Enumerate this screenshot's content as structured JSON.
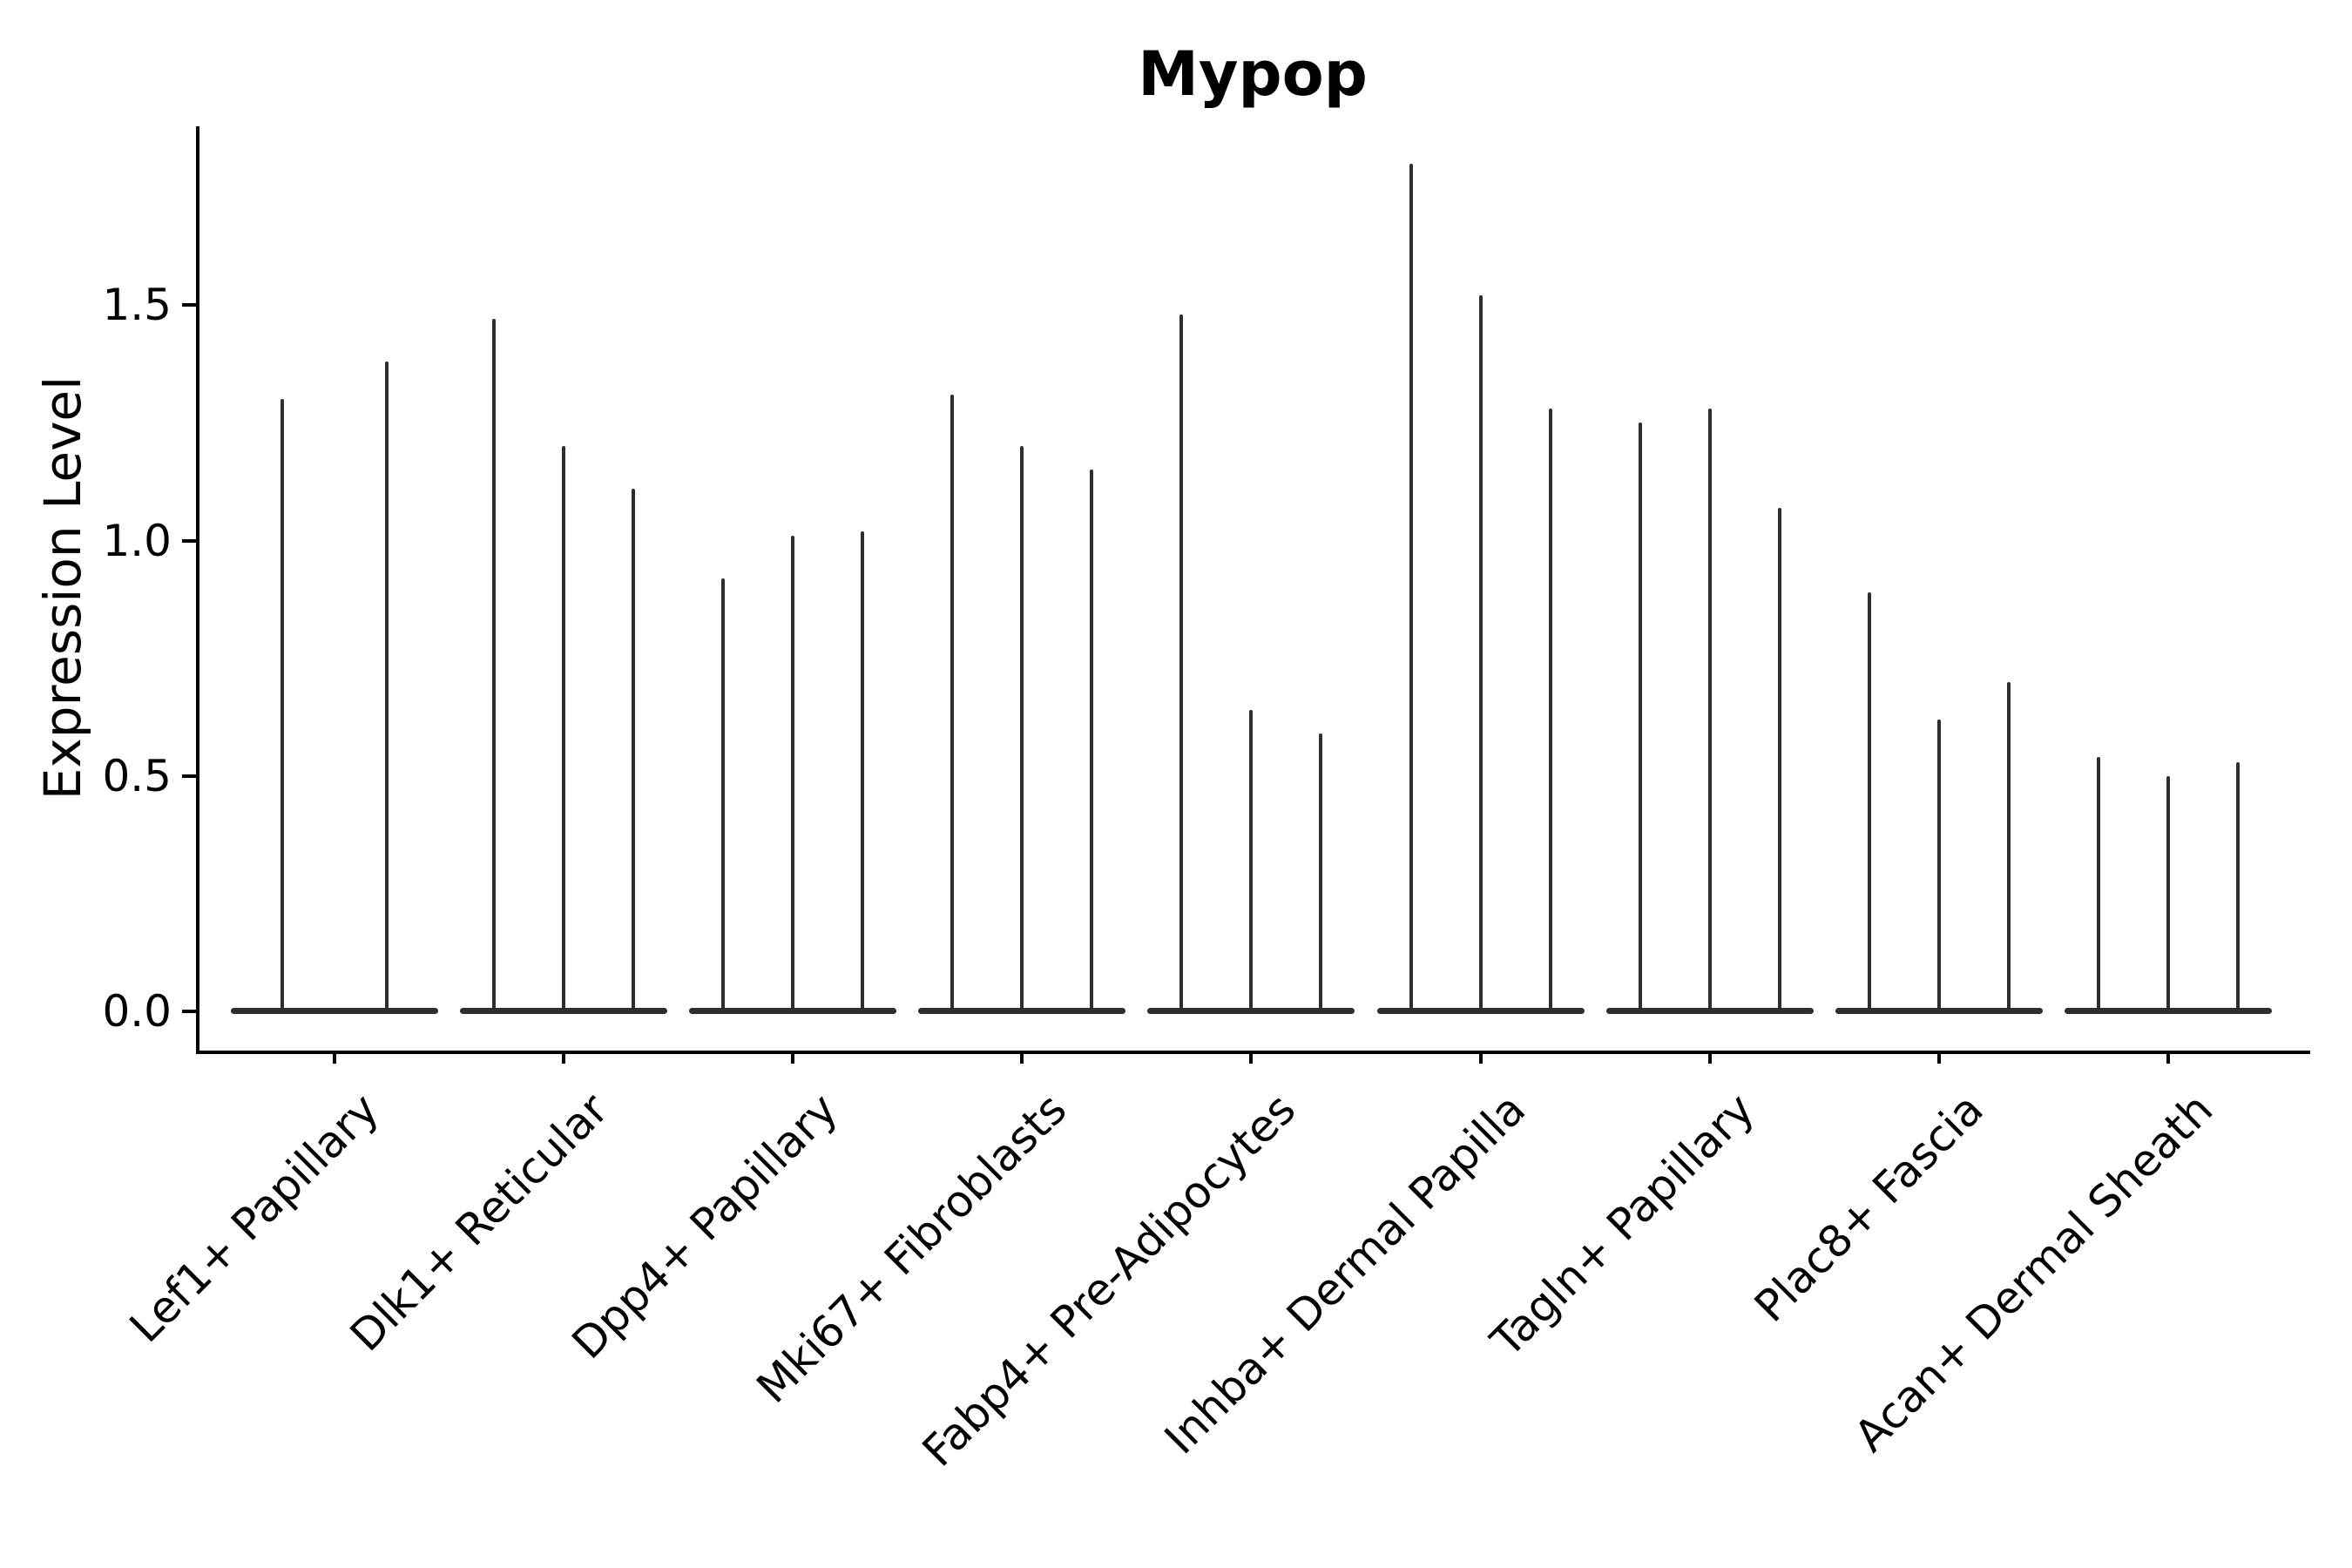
{
  "title": "Mypop",
  "y_axis": {
    "label": "Expression Level",
    "tick_labels": [
      "0.0",
      "0.5",
      "1.0",
      "1.5"
    ],
    "tick_values": [
      0.0,
      0.5,
      1.0,
      1.5
    ]
  },
  "colors": {
    "violin": "#2e2e2e",
    "axis": "#000000",
    "text": "#000000",
    "background": "#ffffff"
  },
  "chart_data": {
    "type": "violin",
    "title": "Mypop",
    "xlabel": "",
    "ylabel": "Expression Level",
    "ylim": [
      -0.09,
      1.89
    ],
    "yticks": [
      0.0,
      0.5,
      1.0,
      1.5
    ],
    "grid": false,
    "legend": false,
    "categories": [
      "Lef1+ Papillary",
      "Dlk1+ Reticular",
      "Dpp4+ Papillary",
      "Mki67+ Fibroblasts",
      "Fabp4+ Pre-Adipocytes",
      "Inhba+ Dermal Papilla",
      "Tagln+ Papillary",
      "Plac8+ Fascia",
      "Acan+ Dermal Sheath"
    ],
    "series": [
      {
        "category": "Lef1+ Papillary",
        "violin_max_values": [
          1.3,
          1.38
        ]
      },
      {
        "category": "Dlk1+ Reticular",
        "violin_max_values": [
          1.47,
          1.2,
          1.11
        ]
      },
      {
        "category": "Dpp4+ Papillary",
        "violin_max_values": [
          0.92,
          1.01,
          1.02
        ]
      },
      {
        "category": "Mki67+ Fibroblasts",
        "violin_max_values": [
          1.31,
          1.2,
          1.15
        ]
      },
      {
        "category": "Fabp4+ Pre-Adipocytes",
        "violin_max_values": [
          1.48,
          0.64,
          0.59
        ]
      },
      {
        "category": "Inhba+ Dermal Papilla",
        "violin_max_values": [
          1.8,
          1.52,
          1.28
        ]
      },
      {
        "category": "Tagln+ Papillary",
        "violin_max_values": [
          1.25,
          1.28,
          1.07
        ]
      },
      {
        "category": "Plac8+ Fascia",
        "violin_max_values": [
          0.89,
          0.62,
          0.7
        ]
      },
      {
        "category": "Acan+ Dermal Sheath",
        "violin_max_values": [
          0.54,
          0.5,
          0.53
        ]
      }
    ],
    "description": "Narrow spike violins (expression mostly 0) with flat bases at y=0; values are the top of each violin spike."
  }
}
